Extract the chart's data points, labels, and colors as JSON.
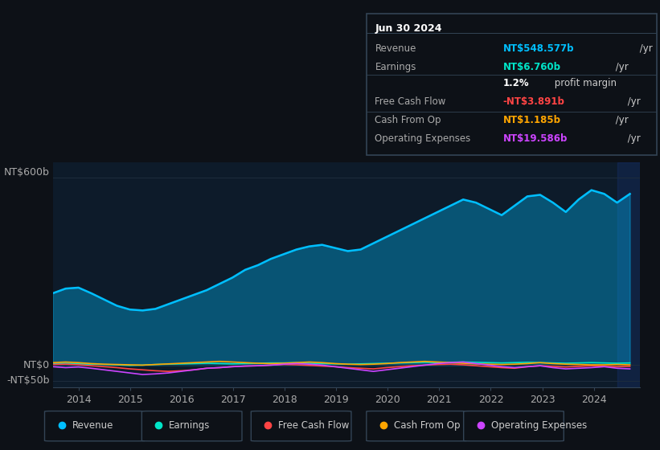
{
  "background_color": "#0d1117",
  "plot_bg_color": "#0d1b2a",
  "ylim": [
    -70,
    650
  ],
  "series_colors": {
    "Revenue": "#00bfff",
    "Earnings": "#00e5c8",
    "Free Cash Flow": "#ff4444",
    "Cash From Op": "#ffa500",
    "Operating Expenses": "#cc44ff"
  },
  "legend_items": [
    "Revenue",
    "Earnings",
    "Free Cash Flow",
    "Cash From Op",
    "Operating Expenses"
  ],
  "tooltip_title": "Jun 30 2024",
  "tooltip_rows": [
    {
      "label": "Revenue",
      "value": "NT$548.577b",
      "suffix": " /yr",
      "value_color": "#00bfff"
    },
    {
      "label": "Earnings",
      "value": "NT$6.760b",
      "suffix": " /yr",
      "value_color": "#00e5c8"
    },
    {
      "label": "",
      "value": "1.2%",
      "suffix": " profit margin",
      "value_color": "#ffffff"
    },
    {
      "label": "Free Cash Flow",
      "value": "-NT$3.891b",
      "suffix": " /yr",
      "value_color": "#ff4444"
    },
    {
      "label": "Cash From Op",
      "value": "NT$1.185b",
      "suffix": " /yr",
      "value_color": "#ffa500"
    },
    {
      "label": "Operating Expenses",
      "value": "NT$19.586b",
      "suffix": " /yr",
      "value_color": "#cc44ff"
    }
  ],
  "grid_color": "#1e2d3d",
  "spine_color": "#334455",
  "tick_color": "#aaaaaa",
  "label_color": "#aaaaaa"
}
